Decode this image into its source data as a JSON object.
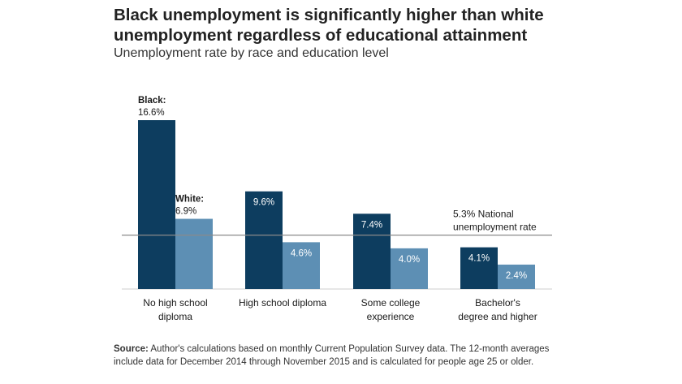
{
  "header": {
    "title_line1": "Black unemployment is significantly higher than white",
    "title_line2": "unemployment regardless of educational attainment",
    "subtitle": "Unemployment rate by race and education level"
  },
  "footer": {
    "source_label": "Source:",
    "source_text": "Author's calculations based on monthly Current Population Survey data. The 12-month averages include data for December 2014 through November 2015 and is calculated for people age 25 or older."
  },
  "chart_data": {
    "type": "bar",
    "title": "Black unemployment is significantly higher than white unemployment regardless of educational attainment",
    "subtitle": "Unemployment rate by race and education level",
    "categories": [
      [
        "No high school",
        "diploma"
      ],
      [
        "High school diploma"
      ],
      [
        "Some college",
        "experience"
      ],
      [
        "Bachelor's",
        "degree and higher"
      ]
    ],
    "series": [
      {
        "name": "Black:",
        "color": "#0d3d5f",
        "values": [
          16.6,
          9.6,
          7.4,
          4.1
        ],
        "labels": [
          "16.6%",
          "9.6%",
          "7.4%",
          "4.1%"
        ]
      },
      {
        "name": "White:",
        "color": "#5d8fb4",
        "values": [
          6.9,
          4.6,
          4.0,
          2.4
        ],
        "labels": [
          "6.9%",
          "4.6%",
          "4.0%",
          "2.4%"
        ]
      }
    ],
    "reference_line": {
      "value": 5.3,
      "label_line1": "5.3% National",
      "label_line2": "unemployment rate"
    },
    "ylim": [
      0,
      16.6
    ],
    "grid": false
  }
}
